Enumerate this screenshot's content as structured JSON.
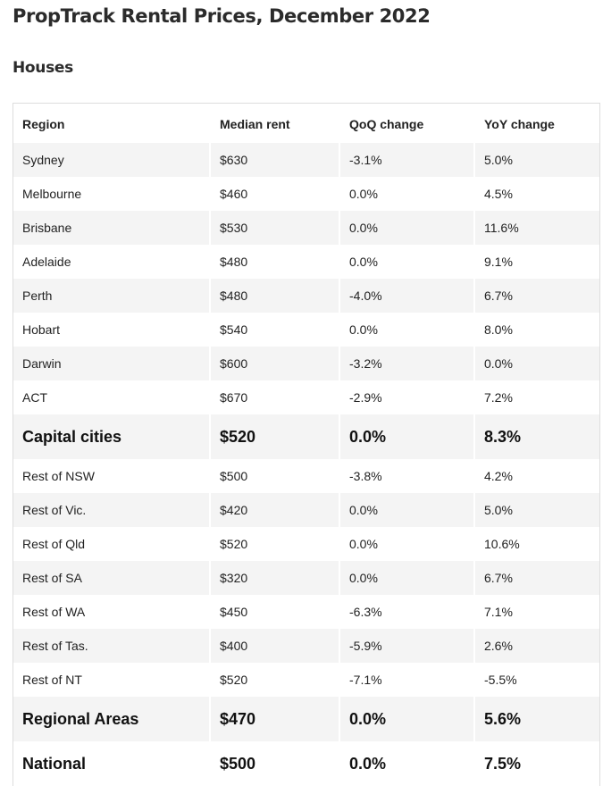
{
  "page": {
    "title": "PropTrack Rental Prices, December 2022"
  },
  "section": {
    "title": "Houses"
  },
  "table": {
    "headers": [
      "Region",
      "Median rent",
      "QoQ change",
      "YoY change"
    ],
    "rows": [
      {
        "region": "Sydney",
        "median_rent": "$630",
        "qoq": "-3.1%",
        "yoy": "5.0%",
        "summary": false
      },
      {
        "region": "Melbourne",
        "median_rent": "$460",
        "qoq": "0.0%",
        "yoy": "4.5%",
        "summary": false
      },
      {
        "region": "Brisbane",
        "median_rent": "$530",
        "qoq": "0.0%",
        "yoy": "11.6%",
        "summary": false
      },
      {
        "region": "Adelaide",
        "median_rent": "$480",
        "qoq": "0.0%",
        "yoy": "9.1%",
        "summary": false
      },
      {
        "region": "Perth",
        "median_rent": "$480",
        "qoq": "-4.0%",
        "yoy": "6.7%",
        "summary": false
      },
      {
        "region": "Hobart",
        "median_rent": "$540",
        "qoq": "0.0%",
        "yoy": "8.0%",
        "summary": false
      },
      {
        "region": "Darwin",
        "median_rent": "$600",
        "qoq": "-3.2%",
        "yoy": "0.0%",
        "summary": false
      },
      {
        "region": "ACT",
        "median_rent": "$670",
        "qoq": "-2.9%",
        "yoy": "7.2%",
        "summary": false
      },
      {
        "region": "Capital cities",
        "median_rent": "$520",
        "qoq": "0.0%",
        "yoy": "8.3%",
        "summary": true
      },
      {
        "region": "Rest of NSW",
        "median_rent": "$500",
        "qoq": "-3.8%",
        "yoy": "4.2%",
        "summary": false
      },
      {
        "region": "Rest of Vic.",
        "median_rent": "$420",
        "qoq": "0.0%",
        "yoy": "5.0%",
        "summary": false
      },
      {
        "region": "Rest of Qld",
        "median_rent": "$520",
        "qoq": "0.0%",
        "yoy": "10.6%",
        "summary": false
      },
      {
        "region": "Rest of SA",
        "median_rent": "$320",
        "qoq": "0.0%",
        "yoy": "6.7%",
        "summary": false
      },
      {
        "region": "Rest of WA",
        "median_rent": "$450",
        "qoq": "-6.3%",
        "yoy": "7.1%",
        "summary": false
      },
      {
        "region": "Rest of Tas.",
        "median_rent": "$400",
        "qoq": "-5.9%",
        "yoy": "2.6%",
        "summary": false
      },
      {
        "region": "Rest of NT",
        "median_rent": "$520",
        "qoq": "-7.1%",
        "yoy": "-5.5%",
        "summary": false
      },
      {
        "region": "Regional Areas",
        "median_rent": "$470",
        "qoq": "0.0%",
        "yoy": "5.6%",
        "summary": true
      },
      {
        "region": "National",
        "median_rent": "$500",
        "qoq": "0.0%",
        "yoy": "7.5%",
        "summary": true
      }
    ]
  }
}
